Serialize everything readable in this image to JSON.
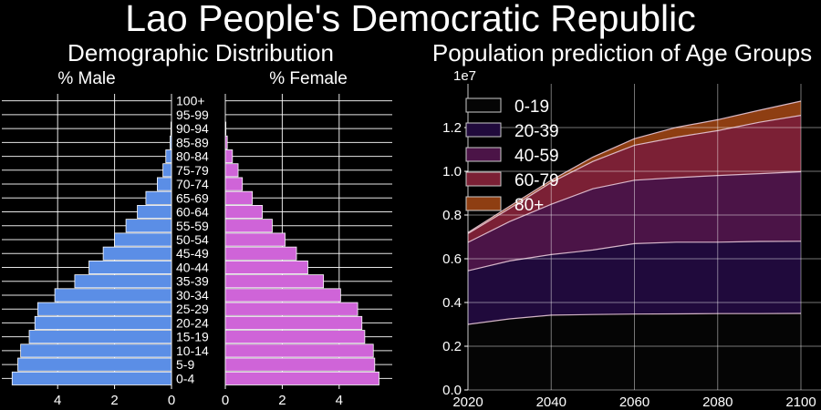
{
  "title": "Lao People's Democratic Republic",
  "chart_data": [
    {
      "type": "bar",
      "orientation": "horizontal-population-pyramid",
      "title": "Demographic Distribution",
      "left_label": "% Male",
      "right_label": "% Female",
      "categories": [
        "0-4",
        "5-9",
        "10-14",
        "15-19",
        "20-24",
        "25-29",
        "30-34",
        "35-39",
        "40-44",
        "45-49",
        "50-54",
        "55-59",
        "60-64",
        "65-69",
        "70-74",
        "75-79",
        "80-84",
        "85-89",
        "90-94",
        "95-99",
        "100+"
      ],
      "series": [
        {
          "name": "% Male",
          "color": "#5b8ee6",
          "values": [
            5.6,
            5.4,
            5.3,
            5.0,
            4.8,
            4.7,
            4.1,
            3.4,
            2.9,
            2.4,
            2.0,
            1.6,
            1.2,
            0.9,
            0.5,
            0.3,
            0.2,
            0.05,
            0.02,
            0.0,
            0.0
          ]
        },
        {
          "name": "% Female",
          "color": "#cf64d8",
          "values": [
            5.4,
            5.25,
            5.2,
            4.9,
            4.8,
            4.65,
            4.05,
            3.45,
            2.9,
            2.5,
            2.1,
            1.65,
            1.3,
            0.95,
            0.6,
            0.45,
            0.25,
            0.07,
            0.02,
            0.0,
            0.0
          ]
        }
      ],
      "male_ticks": [
        "4",
        "2",
        "0"
      ],
      "female_ticks": [
        "0",
        "2",
        "4"
      ],
      "xlim": [
        0,
        5.8
      ],
      "grid": true
    },
    {
      "type": "area",
      "stacked": true,
      "title": "Population prediction of Age Groups",
      "scale_label": "1e7",
      "x": [
        2020,
        2030,
        2040,
        2050,
        2060,
        2070,
        2080,
        2090,
        2100
      ],
      "x_ticks": [
        "2020",
        "2040",
        "2060",
        "2080",
        "2100"
      ],
      "y_ticks": [
        "0.0",
        "0.2",
        "0.4",
        "0.6",
        "0.8",
        "1.0",
        "1.2"
      ],
      "xlim": [
        2020,
        2100
      ],
      "ylim": [
        0,
        1.4
      ],
      "legend_position": "top-left",
      "grid": true,
      "series": [
        {
          "name": "0-19",
          "color": "#050505",
          "values": [
            0.3,
            0.325,
            0.342,
            0.345,
            0.347,
            0.348,
            0.349,
            0.349,
            0.35
          ]
        },
        {
          "name": "20-39",
          "color": "#200a3c",
          "values": [
            0.245,
            0.265,
            0.277,
            0.295,
            0.322,
            0.328,
            0.327,
            0.33,
            0.33
          ]
        },
        {
          "name": "40-59",
          "color": "#4b1447",
          "values": [
            0.13,
            0.18,
            0.23,
            0.28,
            0.29,
            0.295,
            0.305,
            0.31,
            0.318
          ]
        },
        {
          "name": "60-79",
          "color": "#7b2035",
          "values": [
            0.04,
            0.06,
            0.1,
            0.125,
            0.16,
            0.185,
            0.205,
            0.235,
            0.258
          ]
        },
        {
          "name": "80+",
          "color": "#8e3e12",
          "values": [
            0.005,
            0.01,
            0.01,
            0.02,
            0.03,
            0.045,
            0.05,
            0.055,
            0.065
          ]
        }
      ]
    }
  ]
}
